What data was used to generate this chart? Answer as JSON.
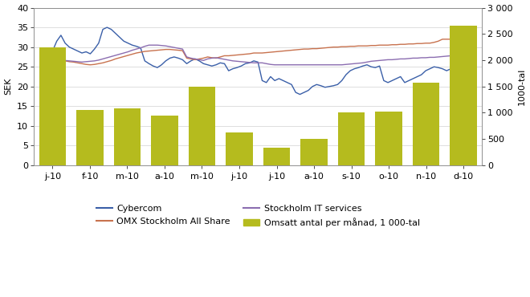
{
  "months": [
    "j-10",
    "f-10",
    "m-10",
    "a-10",
    "m-10",
    "j-10",
    "j-10",
    "a-10",
    "s-10",
    "o-10",
    "n-10",
    "d-10"
  ],
  "bar_values_1000tal": [
    2250,
    1050,
    1090,
    940,
    1490,
    625,
    330,
    510,
    1000,
    1030,
    1565,
    2660
  ],
  "bar_color": "#b5bb1e",
  "cybercom": [
    29.0,
    31.5,
    33.0,
    31.0,
    30.0,
    29.5,
    29.0,
    28.5,
    28.8,
    28.3,
    29.5,
    31.0,
    34.5,
    35.0,
    34.5,
    33.5,
    32.5,
    31.5,
    31.0,
    30.5,
    30.2,
    29.8,
    26.5,
    25.8,
    25.2,
    24.8,
    25.5,
    26.5,
    27.2,
    27.5,
    27.2,
    26.8,
    25.8,
    26.5,
    27.0,
    26.5,
    25.8,
    25.5,
    25.2,
    25.5,
    26.0,
    25.8,
    24.0,
    24.5,
    24.8,
    25.2,
    25.8,
    26.0,
    26.5,
    26.2,
    21.5,
    21.0,
    22.5,
    21.5,
    22.0,
    21.5,
    21.0,
    20.5,
    18.5,
    18.0,
    18.5,
    19.0,
    20.0,
    20.5,
    20.2,
    19.8,
    20.0,
    20.2,
    20.5,
    21.5,
    23.0,
    24.0,
    24.5,
    24.8,
    25.2,
    25.5,
    25.0,
    24.8,
    25.2,
    21.5,
    21.0,
    21.5,
    22.0,
    22.5,
    21.0,
    21.5,
    22.0,
    22.5,
    23.0,
    24.0,
    24.5,
    25.0,
    24.8,
    24.5,
    24.0,
    24.5,
    25.0,
    24.8,
    24.2
  ],
  "omx": [
    26.0,
    26.2,
    26.4,
    26.5,
    26.3,
    26.2,
    26.0,
    25.8,
    25.6,
    25.5,
    25.6,
    25.8,
    26.0,
    26.3,
    26.6,
    27.0,
    27.3,
    27.6,
    27.9,
    28.2,
    28.5,
    28.7,
    28.9,
    29.0,
    29.1,
    29.2,
    29.3,
    29.4,
    29.4,
    29.3,
    29.2,
    29.1,
    27.2,
    27.0,
    26.8,
    27.0,
    27.2,
    27.5,
    27.3,
    27.2,
    27.5,
    27.8,
    27.8,
    27.9,
    28.0,
    28.1,
    28.2,
    28.3,
    28.5,
    28.5,
    28.5,
    28.6,
    28.7,
    28.8,
    28.9,
    29.0,
    29.1,
    29.2,
    29.3,
    29.4,
    29.5,
    29.5,
    29.6,
    29.6,
    29.7,
    29.8,
    29.9,
    30.0,
    30.0,
    30.1,
    30.1,
    30.2,
    30.2,
    30.3,
    30.3,
    30.3,
    30.4,
    30.4,
    30.5,
    30.5,
    30.5,
    30.6,
    30.6,
    30.7,
    30.7,
    30.8,
    30.8,
    30.9,
    30.9,
    31.0,
    31.0,
    31.2,
    31.5,
    32.0,
    32.0,
    32.0,
    32.0,
    32.1,
    32.2
  ],
  "stockholm_it": [
    26.2,
    26.3,
    26.5,
    26.6,
    26.5,
    26.4,
    26.3,
    26.2,
    26.3,
    26.4,
    26.5,
    26.7,
    27.0,
    27.3,
    27.6,
    27.9,
    28.2,
    28.5,
    28.8,
    29.2,
    29.5,
    29.8,
    30.2,
    30.5,
    30.5,
    30.5,
    30.4,
    30.3,
    30.1,
    29.9,
    29.7,
    29.5,
    27.5,
    27.2,
    27.0,
    26.8,
    26.6,
    27.0,
    27.2,
    27.3,
    27.1,
    26.9,
    26.7,
    26.5,
    26.4,
    26.3,
    26.2,
    26.1,
    26.0,
    26.0,
    26.0,
    25.8,
    25.6,
    25.5,
    25.5,
    25.5,
    25.5,
    25.5,
    25.5,
    25.5,
    25.5,
    25.5,
    25.5,
    25.5,
    25.5,
    25.5,
    25.5,
    25.5,
    25.5,
    25.5,
    25.6,
    25.7,
    25.8,
    25.9,
    26.0,
    26.2,
    26.4,
    26.5,
    26.6,
    26.7,
    26.8,
    26.8,
    26.9,
    27.0,
    27.0,
    27.1,
    27.2,
    27.2,
    27.3,
    27.3,
    27.4,
    27.4,
    27.5,
    27.6,
    27.7,
    27.8,
    28.0,
    28.5,
    29.0
  ],
  "cybercom_color": "#3a5fa8",
  "omx_color": "#c8724e",
  "stockholm_it_color": "#8b6db0",
  "left_ylim": [
    0,
    40
  ],
  "right_ylim": [
    0,
    3000
  ],
  "left_yticks": [
    0,
    5,
    10,
    15,
    20,
    25,
    30,
    35,
    40
  ],
  "right_yticks": [
    0,
    500,
    1000,
    1500,
    2000,
    2500,
    3000
  ],
  "right_yticklabels": [
    "0",
    "500",
    "1 000",
    "1 500",
    "2 000",
    "2 500",
    "3 000"
  ],
  "ylabel_left": "SEK",
  "ylabel_right": "1000-tal",
  "legend_items": [
    "Cybercom",
    "OMX Stockholm All Share",
    "Stockholm IT services",
    "Omsatt antal per månad, 1 000-tal"
  ],
  "grid_color": "#d0d0d0",
  "background_color": "#ffffff"
}
